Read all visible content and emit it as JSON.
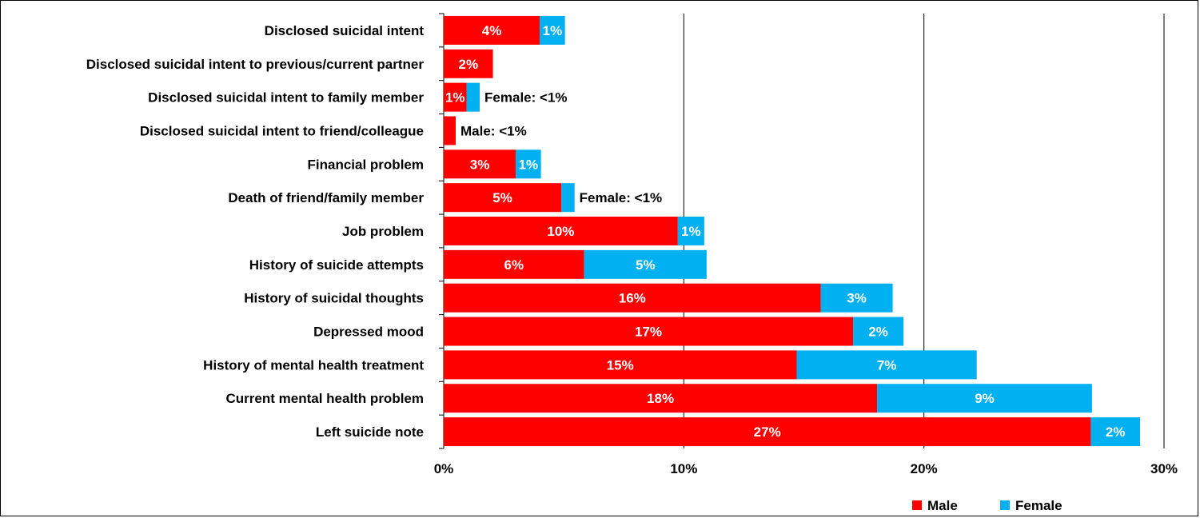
{
  "chart_data": {
    "type": "bar",
    "orientation": "horizontal",
    "stacked": true,
    "title": "",
    "xlabel": "",
    "ylabel": "",
    "xlim": [
      0,
      30
    ],
    "x_ticks": [
      0,
      10,
      20,
      30
    ],
    "x_tick_labels": [
      "0%",
      "10%",
      "20%",
      "30%"
    ],
    "grid": "vertical",
    "legend_position": "bottom-right",
    "categories": [
      "Disclosed suicidal intent",
      "Disclosed suicidal intent to previous/current partner",
      "Disclosed suicidal intent to family member",
      "Disclosed suicidal intent to friend/colleague",
      "Financial problem",
      "Death of friend/family member",
      "Job problem",
      "History of suicide attempts",
      "History of suicidal thoughts",
      "Depressed mood",
      "History of mental health treatment",
      "Current mental health problem",
      "Left suicide note"
    ],
    "series": [
      {
        "name": "Male",
        "color": "#ff0000",
        "values": [
          4.0,
          2.05,
          0.95,
          0.5,
          3.0,
          4.9,
          9.75,
          5.85,
          15.7,
          17.05,
          14.7,
          18.05,
          26.95
        ],
        "labels": [
          "4%",
          "2%",
          "1%",
          "",
          "3%",
          "5%",
          "10%",
          "6%",
          "16%",
          "17%",
          "15%",
          "18%",
          "27%"
        ]
      },
      {
        "name": "Female",
        "color": "#00b0f0",
        "values": [
          1.05,
          0.0,
          0.55,
          0.0,
          1.05,
          0.55,
          1.1,
          5.1,
          3.0,
          2.1,
          7.5,
          8.95,
          2.05
        ],
        "labels": [
          "1%",
          "",
          "",
          "",
          "1%",
          "",
          "1%",
          "5%",
          "3%",
          "2%",
          "7%",
          "9%",
          "2%"
        ]
      }
    ],
    "annotations": [
      {
        "category_index": 2,
        "text": "Female: <1%"
      },
      {
        "category_index": 3,
        "text": "Male: <1%"
      },
      {
        "category_index": 5,
        "text": "Female: <1%"
      }
    ]
  }
}
